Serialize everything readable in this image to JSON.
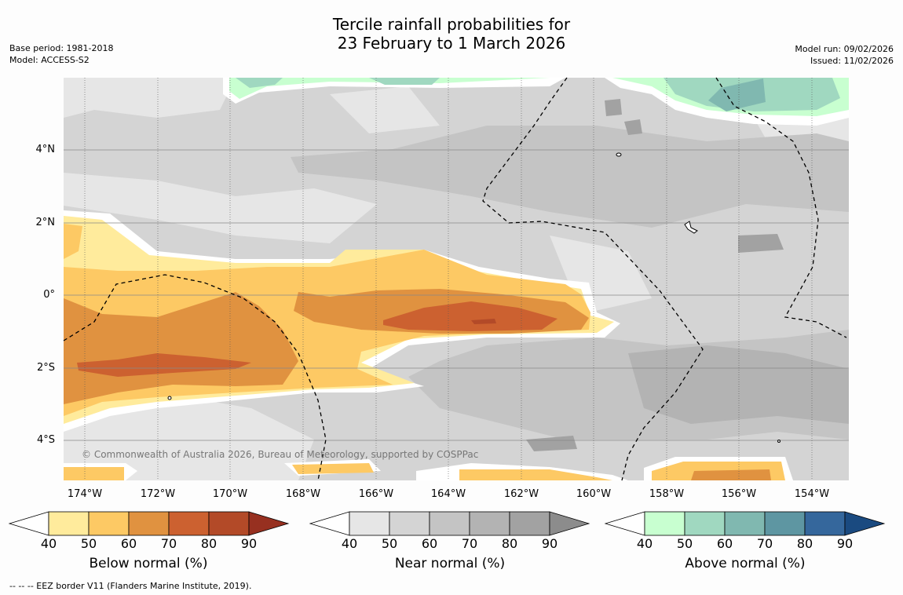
{
  "title": {
    "line1": "Tercile rainfall probabilities for",
    "line2": "23 February to 1 March 2026"
  },
  "meta_left": {
    "base_period": "Base period: 1981-2018",
    "model": "Model: ACCESS-S2"
  },
  "meta_right": {
    "model_run": "Model run: 09/02/2026",
    "issued": "Issued: 11/02/2026"
  },
  "map": {
    "lat_labels": [
      "4°N",
      "2°N",
      "0°",
      "2°S",
      "4°S"
    ],
    "lon_labels": [
      "174°W",
      "172°W",
      "170°W",
      "168°W",
      "166°W",
      "164°W",
      "162°W",
      "160°W",
      "158°W",
      "156°W",
      "154°W"
    ],
    "copyright": "© Commonwealth of Australia 2026, Bureau of Meteorology, supported by COSPPac"
  },
  "legends": {
    "below": {
      "label": "Below normal (%)",
      "ticks": [
        "40",
        "50",
        "60",
        "70",
        "80",
        "90"
      ],
      "colors": [
        "#ffeb9c",
        "#fdc964",
        "#e09240",
        "#cc6130",
        "#b34a28",
        "#973020"
      ]
    },
    "near": {
      "label": "Near normal (%)",
      "ticks": [
        "40",
        "50",
        "60",
        "70",
        "80",
        "90"
      ],
      "colors": [
        "#e6e6e6",
        "#d4d4d4",
        "#c4c4c4",
        "#b3b3b3",
        "#a2a2a2",
        "#8c8c8c"
      ]
    },
    "above": {
      "label": "Above normal (%)",
      "ticks": [
        "40",
        "50",
        "60",
        "70",
        "80",
        "90"
      ],
      "colors": [
        "#c8ffd0",
        "#a0d8c0",
        "#80b8b0",
        "#5e96a2",
        "#35679c",
        "#1a4a80"
      ]
    }
  },
  "footnote": "--  --  -- EEZ border V11 (Flanders Marine Institute, 2019)."
}
